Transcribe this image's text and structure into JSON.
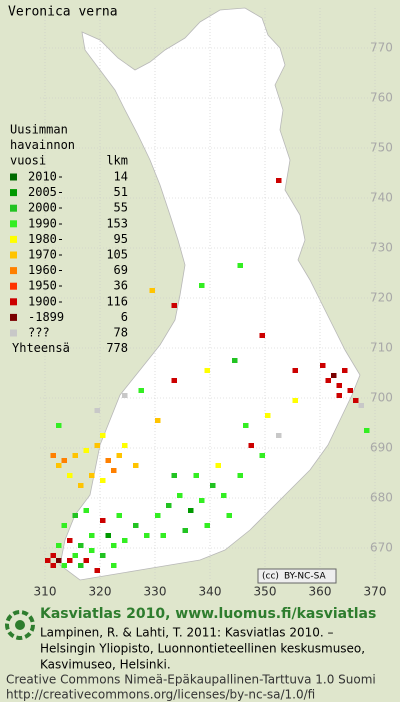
{
  "title": "Veronica verna",
  "legend": {
    "heading": [
      "Uusimman",
      "havainnon",
      "vuosi"
    ],
    "count_heading": "lkm",
    "items": [
      {
        "label": "2010-",
        "count": 14,
        "color": "#006b00"
      },
      {
        "label": "2005-",
        "count": 51,
        "color": "#009900"
      },
      {
        "label": "2000-",
        "count": 55,
        "color": "#22c322"
      },
      {
        "label": "1990-",
        "count": 153,
        "color": "#33ee22"
      },
      {
        "label": "1980-",
        "count": 95,
        "color": "#ffff00"
      },
      {
        "label": "1970-",
        "count": 105,
        "color": "#ffc400"
      },
      {
        "label": "1960-",
        "count": 69,
        "color": "#ff8000"
      },
      {
        "label": "1950-",
        "count": 36,
        "color": "#ff3300"
      },
      {
        "label": "1900-",
        "count": 116,
        "color": "#cc0000"
      },
      {
        "label": "-1899",
        "count": 6,
        "color": "#7a0000"
      },
      {
        "label": "???",
        "count": 78,
        "color": "#c8c8c8"
      }
    ],
    "total_label": "Yhteensä",
    "total": 778
  },
  "map": {
    "xticks": [
      310,
      320,
      330,
      340,
      350,
      360,
      370
    ],
    "yticks": [
      670,
      680,
      690,
      700,
      710,
      720,
      730,
      740,
      750,
      760,
      770
    ],
    "cells": [
      [
        310,
        667,
        8
      ],
      [
        311,
        666,
        8
      ],
      [
        312,
        667,
        9
      ],
      [
        311,
        668,
        8
      ],
      [
        313,
        666,
        3
      ],
      [
        314,
        667,
        8
      ],
      [
        315,
        668,
        3
      ],
      [
        316,
        666,
        2
      ],
      [
        317,
        667,
        8
      ],
      [
        318,
        669,
        3
      ],
      [
        312,
        670,
        3
      ],
      [
        314,
        671,
        8
      ],
      [
        316,
        670,
        2
      ],
      [
        318,
        672,
        3
      ],
      [
        320,
        668,
        2
      ],
      [
        322,
        670,
        3
      ],
      [
        321,
        672,
        1
      ],
      [
        324,
        671,
        3
      ],
      [
        319,
        665,
        8
      ],
      [
        322,
        666,
        3
      ],
      [
        313,
        674,
        3
      ],
      [
        315,
        676,
        2
      ],
      [
        317,
        677,
        3
      ],
      [
        320,
        675,
        8
      ],
      [
        323,
        676,
        3
      ],
      [
        326,
        674,
        2
      ],
      [
        328,
        672,
        3
      ],
      [
        312,
        686,
        5
      ],
      [
        313,
        687,
        6
      ],
      [
        315,
        688,
        5
      ],
      [
        317,
        689,
        4
      ],
      [
        319,
        690,
        5
      ],
      [
        321,
        687,
        6
      ],
      [
        323,
        688,
        5
      ],
      [
        318,
        684,
        5
      ],
      [
        320,
        683,
        4
      ],
      [
        322,
        685,
        6
      ],
      [
        316,
        682,
        5
      ],
      [
        324,
        690,
        4
      ],
      [
        326,
        686,
        5
      ],
      [
        314,
        684,
        4
      ],
      [
        311,
        688,
        6
      ],
      [
        320,
        692,
        4
      ],
      [
        330,
        676,
        3
      ],
      [
        332,
        678,
        2
      ],
      [
        334,
        680,
        3
      ],
      [
        336,
        677,
        1
      ],
      [
        338,
        679,
        3
      ],
      [
        340,
        682,
        2
      ],
      [
        342,
        680,
        3
      ],
      [
        331,
        672,
        3
      ],
      [
        335,
        673,
        2
      ],
      [
        339,
        674,
        3
      ],
      [
        343,
        676,
        3
      ],
      [
        345,
        684,
        3
      ],
      [
        341,
        686,
        4
      ],
      [
        337,
        684,
        3
      ],
      [
        333,
        684,
        2
      ],
      [
        347,
        690,
        8
      ],
      [
        349,
        688,
        3
      ],
      [
        346,
        694,
        3
      ],
      [
        352,
        692,
        10
      ],
      [
        350,
        696,
        4
      ],
      [
        361,
        703,
        8
      ],
      [
        362,
        704,
        9
      ],
      [
        363,
        702,
        8
      ],
      [
        364,
        705,
        8
      ],
      [
        365,
        701,
        8
      ],
      [
        363,
        700,
        8
      ],
      [
        366,
        699,
        8
      ],
      [
        360,
        706,
        8
      ],
      [
        367,
        698,
        10
      ],
      [
        368,
        693,
        3
      ],
      [
        327,
        701,
        3
      ],
      [
        333,
        703,
        8
      ],
      [
        339,
        705,
        4
      ],
      [
        344,
        707,
        2
      ],
      [
        349,
        712,
        8
      ],
      [
        333,
        718,
        8
      ],
      [
        329,
        721,
        5
      ],
      [
        338,
        722,
        3
      ],
      [
        352,
        743,
        8
      ],
      [
        345,
        726,
        3
      ],
      [
        355,
        705,
        8
      ],
      [
        355,
        699,
        4
      ],
      [
        324,
        700,
        10
      ],
      [
        319,
        697,
        10
      ],
      [
        330,
        695,
        5
      ],
      [
        312,
        694,
        3
      ]
    ]
  },
  "badge": {
    "cc": "(cc)",
    "terms": "BY-NC-SA"
  },
  "footer": {
    "brand": "Kasviatlas 2010, www.luomus.fi/kasviatlas",
    "citation": [
      "Lampinen, R. & Lahti, T. 2011: Kasviatlas 2010. –",
      "Helsingin Yliopisto, Luonnontieteellinen keskusmuseo,",
      "Kasvimuseo, Helsinki."
    ],
    "license": [
      "Creative Commons Nimeä-Epäkaupallinen-Tarttuva 1.0 Suomi",
      "http://creativecommons.org/licenses/by-nc-sa/1.0/fi"
    ]
  }
}
